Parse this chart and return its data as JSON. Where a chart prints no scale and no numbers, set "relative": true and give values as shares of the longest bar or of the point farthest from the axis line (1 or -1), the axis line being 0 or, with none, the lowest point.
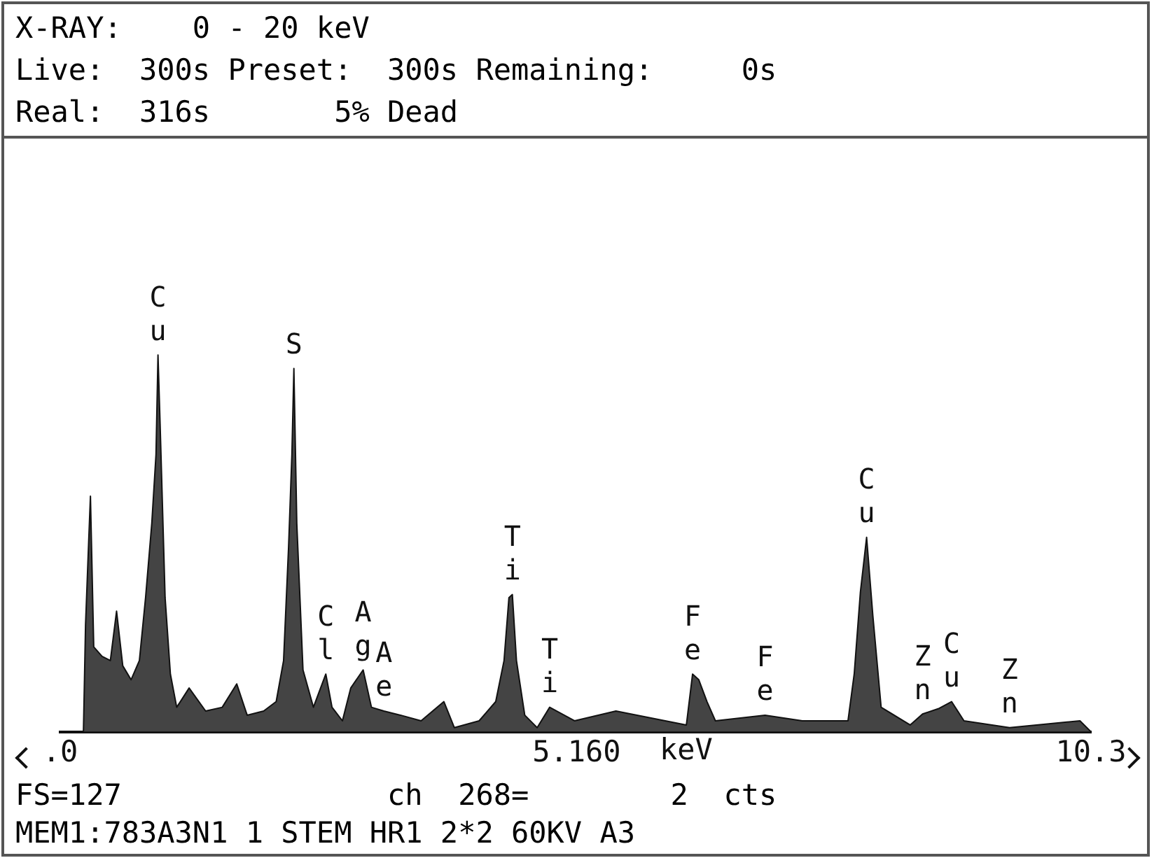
{
  "chart_data": {
    "type": "area",
    "relative": true,
    "xlim": [
      0,
      10.3
    ],
    "xticks": [
      {
        "value": 0,
        "label": ".0"
      },
      {
        "value": 5.16,
        "label": "5.160"
      },
      {
        "value": 10.3,
        "label": "10.3"
      }
    ],
    "xlabel": "keV",
    "grid": false,
    "legend": false,
    "series": [
      {
        "color": "#444444",
        "x": [
          0.232,
          0.253,
          0.286,
          0.302,
          0.335,
          0.418,
          0.501,
          0.563,
          0.625,
          0.708,
          0.791,
          0.853,
          0.915,
          0.957,
          0.977,
          0.998,
          1.048,
          1.101,
          1.164,
          1.288,
          1.453,
          1.619,
          1.764,
          1.868,
          2.033,
          2.158,
          2.232,
          2.282,
          2.315,
          2.335,
          2.364,
          2.426,
          2.53,
          2.654,
          2.716,
          2.82,
          2.903,
          3.027,
          3.11,
          3.234,
          3.4,
          3.606,
          3.834,
          3.938,
          4.186,
          4.352,
          4.435,
          4.484,
          4.518,
          4.559,
          4.642,
          4.766,
          4.891,
          5.139,
          5.553,
          6.257,
          6.319,
          6.381,
          6.463,
          6.547,
          7.043,
          7.416,
          7.872,
          7.934,
          7.996,
          8.058,
          8.12,
          8.203,
          8.493,
          8.617,
          8.783,
          8.907,
          9.031,
          9.487,
          10.19,
          10.3
        ],
        "values": [
          0,
          0.284,
          0.516,
          0.625,
          0.225,
          0.2,
          0.189,
          0.32,
          0.175,
          0.138,
          0.189,
          0.356,
          0.553,
          0.735,
          1,
          0.818,
          0.356,
          0.153,
          0.065,
          0.116,
          0.055,
          0.065,
          0.127,
          0.044,
          0.055,
          0.08,
          0.189,
          0.491,
          0.735,
          0.964,
          0.553,
          0.164,
          0.065,
          0.153,
          0.065,
          0.029,
          0.116,
          0.164,
          0.065,
          0.055,
          0.044,
          0.029,
          0.08,
          0.011,
          0.029,
          0.08,
          0.189,
          0.356,
          0.364,
          0.189,
          0.044,
          0.011,
          0.065,
          0.029,
          0.055,
          0.018,
          0.153,
          0.138,
          0.08,
          0.029,
          0.044,
          0.029,
          0.029,
          0.153,
          0.371,
          0.516,
          0.309,
          0.065,
          0.018,
          0.047,
          0.062,
          0.08,
          0.029,
          0.011,
          0.029,
          0
        ]
      }
    ],
    "annotations": [
      "X-RAY:    0 - 20 keV",
      "Live:  300s Preset:  300s Remaining:     0s",
      "Real:  316s       5% Dead",
      {
        "text": "Cu",
        "x": 0.977,
        "y": 1
      },
      {
        "text": "S",
        "x": 2.335,
        "y": 0.964
      },
      {
        "text": "Cl",
        "x": 2.654,
        "y": 0.153
      },
      {
        "text": "Ag",
        "x": 3.027,
        "y": 0.164
      },
      {
        "text": "Ae",
        "x": 3.234,
        "y": 0.055
      },
      {
        "text": "Ti",
        "x": 4.518,
        "y": 0.364
      },
      {
        "text": "Ti",
        "x": 4.891,
        "y": 0.065
      },
      {
        "text": "Fe",
        "x": 6.319,
        "y": 0.153
      },
      {
        "text": "Fe",
        "x": 7.043,
        "y": 0.044
      },
      {
        "text": "Cu",
        "x": 8.058,
        "y": 0.516
      },
      {
        "text": "Zn",
        "x": 8.617,
        "y": 0.047
      },
      {
        "text": "Cu",
        "x": 8.907,
        "y": 0.08
      },
      {
        "text": "Zn",
        "x": 9.487,
        "y": 0.011
      },
      "FS=127               ch  268=        2  cts",
      "MEM1:783A3N1 1 STEM HR1 2*2 60KV A3"
    ]
  }
}
